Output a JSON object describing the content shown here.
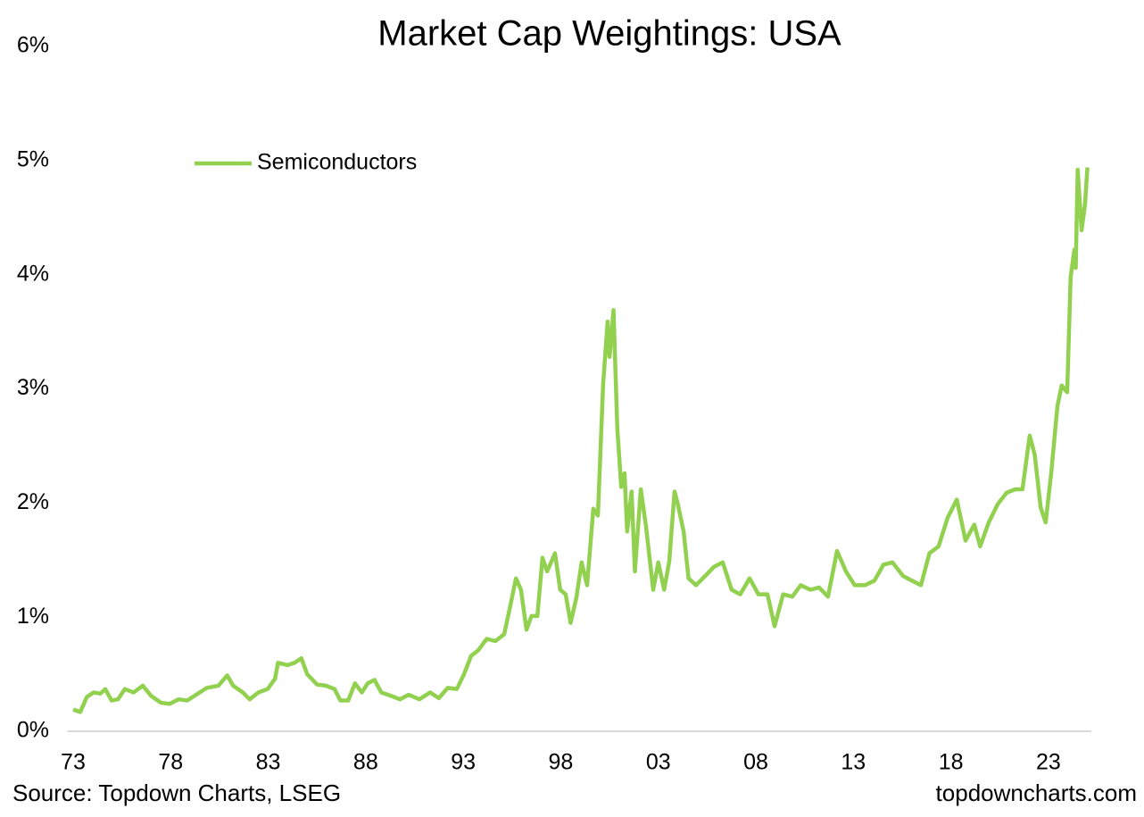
{
  "chart_data": {
    "type": "line",
    "title": "Market Cap Weightings: USA",
    "source": "Source: Topdown Charts, LSEG",
    "watermark": "topdowncharts.com",
    "legend": "upper left",
    "grid": false,
    "xlim": [
      1972.7,
      2025.2
    ],
    "xticks": [
      {
        "value": 1973,
        "label": "73"
      },
      {
        "value": 1978,
        "label": "78"
      },
      {
        "value": 1983,
        "label": "83"
      },
      {
        "value": 1988,
        "label": "88"
      },
      {
        "value": 1993,
        "label": "93"
      },
      {
        "value": 1998,
        "label": "98"
      },
      {
        "value": 2003,
        "label": "03"
      },
      {
        "value": 2008,
        "label": "08"
      },
      {
        "value": 2013,
        "label": "13"
      },
      {
        "value": 2018,
        "label": "18"
      },
      {
        "value": 2023,
        "label": "23"
      }
    ],
    "ylim": [
      0,
      6
    ],
    "yticks": [
      {
        "value": 0,
        "label": "0%"
      },
      {
        "value": 1,
        "label": "1%"
      },
      {
        "value": 2,
        "label": "2%"
      },
      {
        "value": 3,
        "label": "3%"
      },
      {
        "value": 4,
        "label": "4%"
      },
      {
        "value": 5,
        "label": "5%"
      },
      {
        "value": 6,
        "label": "6%"
      }
    ],
    "x": [
      1973.0,
      1973.37,
      1973.7,
      1974.05,
      1974.4,
      1974.65,
      1974.97,
      1975.3,
      1975.65,
      1976.1,
      1976.57,
      1977.0,
      1977.5,
      1977.95,
      1978.4,
      1978.85,
      1979.3,
      1979.85,
      1980.45,
      1980.9,
      1981.2,
      1981.7,
      1982.05,
      1982.5,
      1982.97,
      1983.35,
      1983.5,
      1984.0,
      1984.35,
      1984.7,
      1985.0,
      1985.5,
      1985.95,
      1986.4,
      1986.7,
      1987.1,
      1987.45,
      1987.8,
      1988.1,
      1988.45,
      1988.8,
      1989.3,
      1989.75,
      1990.2,
      1990.75,
      1991.3,
      1991.75,
      1992.2,
      1992.67,
      1993.04,
      1993.4,
      1993.77,
      1994.2,
      1994.65,
      1995.1,
      1995.4,
      1995.7,
      1995.96,
      1996.24,
      1996.5,
      1996.8,
      1997.06,
      1997.3,
      1997.7,
      1997.97,
      1998.25,
      1998.5,
      1998.8,
      1999.07,
      1999.35,
      1999.67,
      1999.9,
      2000.17,
      2000.4,
      2000.5,
      2000.7,
      2000.9,
      2001.1,
      2001.27,
      2001.4,
      2001.63,
      2001.8,
      2002.1,
      2002.37,
      2002.74,
      2003.0,
      2003.3,
      2003.56,
      2003.83,
      2004.0,
      2004.3,
      2004.55,
      2004.93,
      2005.4,
      2005.85,
      2006.3,
      2006.76,
      2007.2,
      2007.68,
      2008.13,
      2008.6,
      2008.96,
      2009.4,
      2009.87,
      2010.3,
      2010.8,
      2011.24,
      2011.7,
      2012.16,
      2012.62,
      2013.07,
      2013.6,
      2014.08,
      2014.54,
      2015.0,
      2015.55,
      2016.0,
      2016.46,
      2016.9,
      2017.37,
      2017.83,
      2018.3,
      2018.75,
      2019.2,
      2019.5,
      2019.94,
      2020.4,
      2020.86,
      2021.3,
      2021.67,
      2022.04,
      2022.3,
      2022.6,
      2022.86,
      2023.14,
      2023.46,
      2023.68,
      2023.96,
      2024.14,
      2024.33,
      2024.4,
      2024.5,
      2024.7,
      2024.87,
      2025.0
    ],
    "series": [
      {
        "name": "Semiconductors",
        "color": "#92d050",
        "values": [
          0.19,
          0.17,
          0.3,
          0.34,
          0.33,
          0.37,
          0.27,
          0.28,
          0.37,
          0.34,
          0.4,
          0.31,
          0.25,
          0.24,
          0.28,
          0.27,
          0.32,
          0.38,
          0.4,
          0.49,
          0.4,
          0.34,
          0.28,
          0.34,
          0.37,
          0.46,
          0.6,
          0.58,
          0.6,
          0.64,
          0.5,
          0.41,
          0.4,
          0.37,
          0.27,
          0.27,
          0.42,
          0.34,
          0.42,
          0.45,
          0.34,
          0.31,
          0.28,
          0.32,
          0.28,
          0.34,
          0.29,
          0.38,
          0.37,
          0.5,
          0.66,
          0.71,
          0.81,
          0.79,
          0.85,
          1.09,
          1.34,
          1.24,
          0.89,
          1.01,
          1.01,
          1.52,
          1.4,
          1.56,
          1.24,
          1.2,
          0.95,
          1.17,
          1.48,
          1.28,
          1.95,
          1.89,
          3.04,
          3.59,
          3.28,
          3.69,
          2.65,
          2.14,
          2.26,
          1.75,
          2.1,
          1.4,
          2.12,
          1.79,
          1.24,
          1.48,
          1.24,
          1.49,
          2.1,
          1.99,
          1.75,
          1.34,
          1.28,
          1.36,
          1.44,
          1.48,
          1.24,
          1.2,
          1.34,
          1.2,
          1.2,
          0.92,
          1.2,
          1.18,
          1.28,
          1.24,
          1.26,
          1.18,
          1.58,
          1.4,
          1.28,
          1.28,
          1.32,
          1.46,
          1.48,
          1.36,
          1.32,
          1.28,
          1.56,
          1.62,
          1.87,
          2.03,
          1.67,
          1.81,
          1.62,
          1.83,
          1.99,
          2.09,
          2.12,
          2.12,
          2.59,
          2.42,
          1.96,
          1.83,
          2.26,
          2.85,
          3.03,
          2.97,
          3.98,
          4.22,
          4.06,
          4.92,
          4.39,
          4.61,
          4.94
        ]
      }
    ]
  }
}
